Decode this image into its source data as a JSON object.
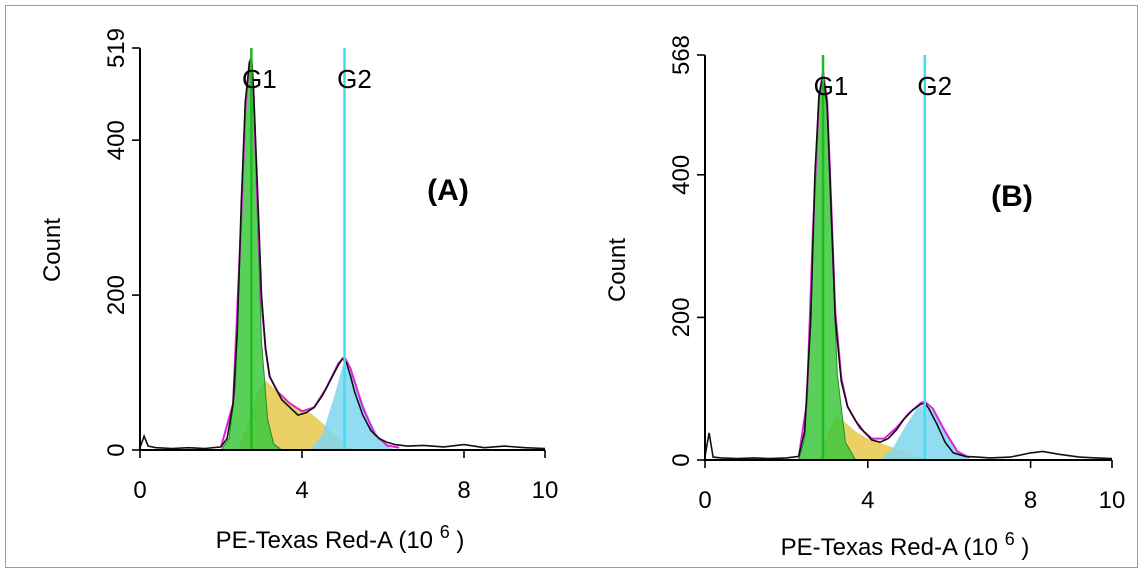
{
  "colors": {
    "g1_fill": "#3cc83c",
    "g1_line": "#22b822",
    "s_fill": "#e6c84a",
    "g2_fill": "#7fd6f0",
    "g2_line": "#3ee0f0",
    "fit_line": "#e020e0",
    "data_line": "#111111"
  },
  "chart_data": [
    {
      "type": "area",
      "panel_label": "(A)",
      "xlabel": "PE-Texas Red-A",
      "xunit_base": "(10",
      "xunit_exp": "6",
      "xunit_close": ")",
      "ylabel": "Count",
      "xlim": [
        0,
        10
      ],
      "ylim": [
        0,
        519
      ],
      "x_ticks": [
        "0",
        "4",
        "8",
        "10"
      ],
      "x_tick_values": [
        0,
        4,
        8,
        10
      ],
      "y_ticks": [
        "0",
        "200",
        "400",
        "519"
      ],
      "y_tick_values": [
        0,
        200,
        400,
        519
      ],
      "gates": [
        {
          "name": "G1",
          "x": 2.75
        },
        {
          "name": "G2",
          "x": 5.05
        }
      ],
      "histogram": {
        "x": [
          0,
          0.1,
          0.2,
          0.4,
          0.8,
          1.2,
          1.6,
          2.0,
          2.15,
          2.3,
          2.4,
          2.5,
          2.6,
          2.7,
          2.75,
          2.8,
          2.9,
          3.0,
          3.1,
          3.2,
          3.3,
          3.5,
          3.7,
          3.9,
          4.1,
          4.3,
          4.5,
          4.7,
          4.9,
          5.0,
          5.1,
          5.2,
          5.3,
          5.5,
          5.7,
          5.9,
          6.1,
          6.3,
          6.6,
          7.0,
          7.5,
          8.0,
          8.5,
          9.0,
          9.5,
          10
        ],
        "y": [
          3,
          18,
          5,
          3,
          2,
          3,
          2,
          4,
          15,
          60,
          150,
          320,
          450,
          500,
          505,
          470,
          340,
          200,
          130,
          95,
          85,
          65,
          55,
          45,
          48,
          55,
          70,
          90,
          110,
          118,
          112,
          95,
          75,
          45,
          25,
          15,
          10,
          7,
          5,
          6,
          4,
          7,
          3,
          5,
          3,
          2
        ]
      },
      "g1_component": {
        "x": [
          2.0,
          2.2,
          2.35,
          2.5,
          2.6,
          2.7,
          2.75,
          2.8,
          2.9,
          3.0,
          3.15,
          3.3,
          3.5
        ],
        "y": [
          0,
          15,
          80,
          300,
          440,
          500,
          505,
          460,
          300,
          140,
          40,
          8,
          0
        ]
      },
      "s_component": {
        "x": [
          2.4,
          2.7,
          2.9,
          3.1,
          3.3,
          3.6,
          3.9,
          4.2,
          4.5,
          4.8,
          5.1,
          5.3
        ],
        "y": [
          0,
          40,
          75,
          90,
          80,
          65,
          55,
          48,
          35,
          20,
          5,
          0
        ]
      },
      "g2_component": {
        "x": [
          4.2,
          4.5,
          4.8,
          5.0,
          5.05,
          5.2,
          5.4,
          5.7,
          6.0,
          6.3
        ],
        "y": [
          0,
          20,
          70,
          108,
          112,
          100,
          75,
          35,
          8,
          0
        ]
      },
      "fit_curve": {
        "x": [
          2.0,
          2.3,
          2.5,
          2.6,
          2.7,
          2.75,
          2.8,
          2.9,
          3.0,
          3.1,
          3.2,
          3.4,
          3.7,
          4.0,
          4.3,
          4.6,
          4.9,
          5.05,
          5.2,
          5.5,
          5.8,
          6.1,
          6.4
        ],
        "y": [
          4,
          60,
          300,
          440,
          500,
          508,
          465,
          320,
          190,
          130,
          95,
          75,
          60,
          50,
          55,
          80,
          112,
          120,
          105,
          55,
          20,
          6,
          3
        ]
      }
    },
    {
      "type": "area",
      "panel_label": "(B)",
      "xlabel": "PE-Texas Red-A",
      "xunit_base": "(10",
      "xunit_exp": "6",
      "xunit_close": ")",
      "ylabel": "Count",
      "xlim": [
        0,
        10
      ],
      "ylim": [
        0,
        568
      ],
      "x_ticks": [
        "0",
        "4",
        "8",
        "10"
      ],
      "x_tick_values": [
        0,
        4,
        8,
        10
      ],
      "y_ticks": [
        "0",
        "200",
        "400",
        "568"
      ],
      "y_tick_values": [
        0,
        200,
        400,
        568
      ],
      "gates": [
        {
          "name": "G1",
          "x": 2.9
        },
        {
          "name": "G2",
          "x": 5.4
        }
      ],
      "histogram": {
        "x": [
          0,
          0.1,
          0.2,
          0.4,
          0.8,
          1.2,
          1.6,
          2.0,
          2.3,
          2.45,
          2.6,
          2.7,
          2.8,
          2.9,
          3.0,
          3.1,
          3.2,
          3.35,
          3.5,
          3.7,
          3.9,
          4.1,
          4.3,
          4.5,
          4.7,
          4.9,
          5.1,
          5.3,
          5.4,
          5.5,
          5.7,
          5.9,
          6.1,
          6.4,
          6.7,
          7.0,
          7.5,
          8.0,
          8.3,
          8.7,
          9.2,
          9.6,
          10
        ],
        "y": [
          5,
          38,
          4,
          3,
          2,
          3,
          2,
          3,
          5,
          40,
          200,
          400,
          510,
          540,
          500,
          350,
          200,
          110,
          75,
          55,
          40,
          28,
          25,
          30,
          42,
          58,
          70,
          78,
          80,
          72,
          50,
          25,
          10,
          5,
          4,
          3,
          4,
          10,
          12,
          8,
          4,
          3,
          2
        ]
      },
      "g1_component": {
        "x": [
          2.3,
          2.45,
          2.6,
          2.7,
          2.8,
          2.9,
          3.0,
          3.1,
          3.25,
          3.45,
          3.7
        ],
        "y": [
          0,
          30,
          190,
          390,
          505,
          540,
          490,
          330,
          120,
          25,
          0
        ]
      },
      "s_component": {
        "x": [
          2.8,
          3.0,
          3.2,
          3.4,
          3.7,
          4.0,
          4.3,
          4.6,
          4.9,
          5.2,
          5.5
        ],
        "y": [
          0,
          35,
          62,
          55,
          40,
          30,
          24,
          18,
          12,
          5,
          0
        ]
      },
      "g2_component": {
        "x": [
          4.3,
          4.6,
          4.9,
          5.2,
          5.4,
          5.6,
          5.9,
          6.2,
          6.5
        ],
        "y": [
          0,
          15,
          45,
          72,
          78,
          70,
          40,
          12,
          0
        ]
      },
      "fit_curve": {
        "x": [
          2.3,
          2.5,
          2.65,
          2.8,
          2.9,
          3.0,
          3.1,
          3.2,
          3.35,
          3.5,
          3.8,
          4.1,
          4.4,
          4.7,
          5.0,
          5.3,
          5.4,
          5.6,
          5.9,
          6.2,
          6.5
        ],
        "y": [
          3,
          80,
          320,
          510,
          545,
          505,
          360,
          210,
          115,
          75,
          45,
          30,
          30,
          45,
          65,
          80,
          82,
          72,
          40,
          12,
          3
        ]
      }
    }
  ]
}
